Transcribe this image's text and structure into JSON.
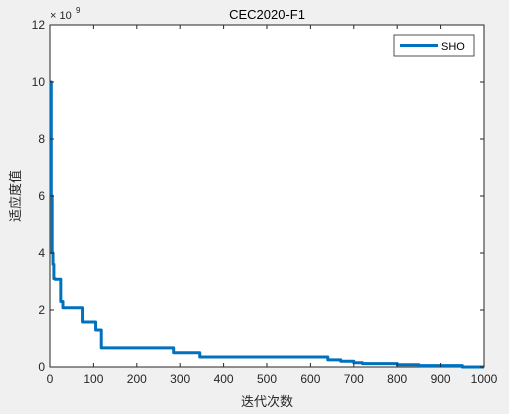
{
  "chart_data": {
    "type": "line",
    "title": "CEC2020-F1",
    "xlabel": "迭代次数",
    "ylabel": "适应度值",
    "xlim": [
      0,
      1000
    ],
    "ylim": [
      0,
      12
    ],
    "y_exponent_label": "×10^9",
    "y_exponent_base": "× 10",
    "y_exponent_power": "9",
    "xticks": [
      0,
      100,
      200,
      300,
      400,
      500,
      600,
      700,
      800,
      900,
      1000
    ],
    "yticks": [
      0,
      2,
      4,
      6,
      8,
      10,
      12
    ],
    "grid": false,
    "legend_position": "top-right",
    "series": [
      {
        "name": "SHO",
        "color": "#0072bd",
        "x": [
          1,
          3,
          3,
          5,
          5,
          7,
          7,
          9,
          9,
          12,
          12,
          25,
          25,
          30,
          30,
          75,
          75,
          105,
          105,
          118,
          118,
          285,
          285,
          345,
          345,
          640,
          640,
          670,
          670,
          700,
          700,
          720,
          720,
          800,
          800,
          850,
          850,
          950,
          950,
          1000
        ],
        "y": [
          10.0,
          10.0,
          6.0,
          6.0,
          4.0,
          4.0,
          3.6,
          3.6,
          3.1,
          3.1,
          3.08,
          3.08,
          2.3,
          2.3,
          2.08,
          2.08,
          1.58,
          1.58,
          1.3,
          1.3,
          0.67,
          0.67,
          0.5,
          0.5,
          0.35,
          0.35,
          0.25,
          0.25,
          0.2,
          0.2,
          0.15,
          0.15,
          0.12,
          0.12,
          0.08,
          0.08,
          0.05,
          0.05,
          0.0,
          0.0
        ]
      }
    ]
  }
}
